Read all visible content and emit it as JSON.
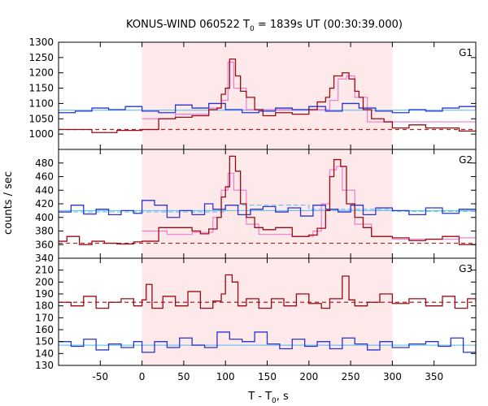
{
  "chart_data": {
    "type": "line",
    "title": "KONUS-WIND 060522 T",
    "title_sub": "0",
    "title_rest": " = 1839s UT (00:30:39.000)",
    "xlabel": "T - T",
    "xlabel_sub": "0",
    "xlabel_rest": ", s",
    "ylabel": "counts / sec",
    "xlim": [
      -100,
      400
    ],
    "x_ticks": [
      -50,
      0,
      50,
      100,
      150,
      200,
      250,
      300,
      350
    ],
    "highlight_x_range": [
      0,
      300
    ],
    "colors": {
      "highlight": "#fde8ea",
      "red": "#9b0a14",
      "blue": "#2a36c8",
      "pink": "#f07cd0",
      "lightblue": "#55b8f2",
      "dashred": "#b02020"
    },
    "panels": [
      {
        "label": "G1",
        "ylim": [
          950,
          1300
        ],
        "y_ticks": [
          950,
          1000,
          1050,
          1100,
          1150,
          1200,
          1250,
          1300
        ],
        "show_tick_labels": [
          1000,
          1050,
          1100,
          1150,
          1200,
          1250,
          1300
        ],
        "red_bg_level": 1015,
        "blue_bg_level": 1078,
        "red_series": [
          [
            -100,
            1015
          ],
          [
            -60,
            1005
          ],
          [
            -30,
            1012
          ],
          [
            0,
            1015
          ],
          [
            20,
            1050
          ],
          [
            40,
            1055
          ],
          [
            60,
            1060
          ],
          [
            80,
            1080
          ],
          [
            90,
            1085
          ],
          [
            95,
            1130
          ],
          [
            100,
            1150
          ],
          [
            105,
            1245
          ],
          [
            112,
            1190
          ],
          [
            118,
            1140
          ],
          [
            125,
            1120
          ],
          [
            135,
            1080
          ],
          [
            145,
            1060
          ],
          [
            160,
            1070
          ],
          [
            180,
            1065
          ],
          [
            200,
            1080
          ],
          [
            210,
            1105
          ],
          [
            220,
            1120
          ],
          [
            225,
            1150
          ],
          [
            230,
            1190
          ],
          [
            240,
            1200
          ],
          [
            248,
            1180
          ],
          [
            255,
            1140
          ],
          [
            260,
            1120
          ],
          [
            265,
            1080
          ],
          [
            275,
            1050
          ],
          [
            290,
            1040
          ],
          [
            300,
            1020
          ],
          [
            320,
            1030
          ],
          [
            340,
            1020
          ],
          [
            360,
            1020
          ],
          [
            380,
            1010
          ],
          [
            400,
            1008
          ]
        ],
        "blue_series": [
          [
            -100,
            1070
          ],
          [
            -80,
            1075
          ],
          [
            -60,
            1085
          ],
          [
            -40,
            1080
          ],
          [
            -20,
            1090
          ],
          [
            0,
            1075
          ],
          [
            20,
            1070
          ],
          [
            40,
            1095
          ],
          [
            60,
            1085
          ],
          [
            80,
            1100
          ],
          [
            100,
            1080
          ],
          [
            120,
            1070
          ],
          [
            140,
            1075
          ],
          [
            160,
            1085
          ],
          [
            180,
            1080
          ],
          [
            200,
            1090
          ],
          [
            220,
            1075
          ],
          [
            240,
            1100
          ],
          [
            260,
            1085
          ],
          [
            280,
            1075
          ],
          [
            300,
            1070
          ],
          [
            320,
            1080
          ],
          [
            340,
            1075
          ],
          [
            360,
            1085
          ],
          [
            380,
            1090
          ],
          [
            400,
            1080
          ]
        ],
        "model_series": [
          [
            0,
            1050
          ],
          [
            40,
            1065
          ],
          [
            80,
            1085
          ],
          [
            95,
            1110
          ],
          [
            103,
            1235
          ],
          [
            110,
            1150
          ],
          [
            125,
            1080
          ],
          [
            200,
            1080
          ],
          [
            225,
            1110
          ],
          [
            235,
            1180
          ],
          [
            245,
            1190
          ],
          [
            255,
            1120
          ],
          [
            270,
            1040
          ],
          [
            300,
            1040
          ]
        ]
      },
      {
        "label": "G2",
        "ylim": [
          340,
          500
        ],
        "y_ticks": [
          340,
          360,
          380,
          400,
          420,
          440,
          460,
          480,
          500
        ],
        "show_tick_labels": [
          340,
          360,
          380,
          400,
          420,
          440,
          460,
          480
        ],
        "red_bg_level": 362,
        "blue_bg_level": 410,
        "red_series": [
          [
            -100,
            365
          ],
          [
            -90,
            372
          ],
          [
            -75,
            360
          ],
          [
            -60,
            365
          ],
          [
            -45,
            362
          ],
          [
            -30,
            361
          ],
          [
            -10,
            364
          ],
          [
            0,
            365
          ],
          [
            20,
            385
          ],
          [
            40,
            385
          ],
          [
            60,
            380
          ],
          [
            70,
            376
          ],
          [
            80,
            383
          ],
          [
            90,
            400
          ],
          [
            95,
            430
          ],
          [
            100,
            445
          ],
          [
            105,
            490
          ],
          [
            112,
            468
          ],
          [
            118,
            420
          ],
          [
            125,
            400
          ],
          [
            135,
            385
          ],
          [
            145,
            382
          ],
          [
            160,
            385
          ],
          [
            180,
            372
          ],
          [
            200,
            374
          ],
          [
            210,
            384
          ],
          [
            220,
            410
          ],
          [
            225,
            460
          ],
          [
            230,
            485
          ],
          [
            238,
            475
          ],
          [
            245,
            420
          ],
          [
            255,
            400
          ],
          [
            265,
            385
          ],
          [
            275,
            372
          ],
          [
            300,
            370
          ],
          [
            320,
            366
          ],
          [
            340,
            368
          ],
          [
            360,
            372
          ],
          [
            380,
            360
          ],
          [
            400,
            362
          ]
        ],
        "blue_series": [
          [
            -100,
            408
          ],
          [
            -85,
            418
          ],
          [
            -70,
            405
          ],
          [
            -55,
            412
          ],
          [
            -40,
            404
          ],
          [
            -25,
            410
          ],
          [
            -10,
            406
          ],
          [
            0,
            425
          ],
          [
            15,
            418
          ],
          [
            30,
            400
          ],
          [
            45,
            410
          ],
          [
            60,
            404
          ],
          [
            75,
            420
          ],
          [
            85,
            412
          ],
          [
            100,
            418
          ],
          [
            115,
            404
          ],
          [
            130,
            412
          ],
          [
            145,
            416
          ],
          [
            160,
            408
          ],
          [
            175,
            414
          ],
          [
            190,
            402
          ],
          [
            205,
            418
          ],
          [
            220,
            412
          ],
          [
            235,
            408
          ],
          [
            250,
            418
          ],
          [
            265,
            404
          ],
          [
            280,
            414
          ],
          [
            300,
            410
          ],
          [
            320,
            404
          ],
          [
            340,
            414
          ],
          [
            360,
            406
          ],
          [
            380,
            412
          ],
          [
            400,
            408
          ]
        ],
        "model_series": [
          [
            0,
            380
          ],
          [
            30,
            375
          ],
          [
            60,
            378
          ],
          [
            85,
            400
          ],
          [
            95,
            440
          ],
          [
            103,
            465
          ],
          [
            110,
            440
          ],
          [
            125,
            390
          ],
          [
            140,
            375
          ],
          [
            180,
            372
          ],
          [
            205,
            380
          ],
          [
            215,
            420
          ],
          [
            225,
            470
          ],
          [
            233,
            475
          ],
          [
            240,
            440
          ],
          [
            255,
            390
          ],
          [
            275,
            372
          ],
          [
            300,
            368
          ],
          [
            380,
            370
          ]
        ],
        "lightblue_series": [
          [
            -100,
            408
          ],
          [
            0,
            408
          ],
          [
            100,
            418
          ],
          [
            200,
            412
          ],
          [
            300,
            409
          ],
          [
            400,
            408
          ]
        ]
      },
      {
        "label": "G3",
        "ylim": [
          130,
          220
        ],
        "y_ticks": [
          130,
          140,
          150,
          160,
          170,
          180,
          190,
          200,
          210,
          220
        ],
        "show_tick_labels": [
          130,
          140,
          150,
          160,
          170,
          180,
          190,
          200,
          210
        ],
        "red_bg_level": 183,
        "blue_bg_level": 147,
        "red_series": [
          [
            -100,
            183
          ],
          [
            -85,
            180
          ],
          [
            -70,
            188
          ],
          [
            -55,
            178
          ],
          [
            -40,
            183
          ],
          [
            -25,
            186
          ],
          [
            -10,
            180
          ],
          [
            0,
            185
          ],
          [
            5,
            198
          ],
          [
            12,
            178
          ],
          [
            25,
            188
          ],
          [
            40,
            180
          ],
          [
            55,
            192
          ],
          [
            70,
            178
          ],
          [
            85,
            184
          ],
          [
            95,
            190
          ],
          [
            100,
            206
          ],
          [
            108,
            200
          ],
          [
            115,
            180
          ],
          [
            125,
            186
          ],
          [
            140,
            178
          ],
          [
            155,
            186
          ],
          [
            170,
            180
          ],
          [
            185,
            190
          ],
          [
            200,
            182
          ],
          [
            215,
            178
          ],
          [
            225,
            186
          ],
          [
            240,
            205
          ],
          [
            248,
            185
          ],
          [
            255,
            180
          ],
          [
            270,
            183
          ],
          [
            285,
            190
          ],
          [
            300,
            182
          ],
          [
            320,
            186
          ],
          [
            340,
            180
          ],
          [
            360,
            188
          ],
          [
            375,
            178
          ],
          [
            390,
            186
          ],
          [
            400,
            183
          ]
        ],
        "blue_series": [
          [
            -100,
            150
          ],
          [
            -85,
            146
          ],
          [
            -70,
            152
          ],
          [
            -55,
            143
          ],
          [
            -40,
            148
          ],
          [
            -25,
            145
          ],
          [
            -10,
            150
          ],
          [
            0,
            141
          ],
          [
            15,
            150
          ],
          [
            30,
            145
          ],
          [
            45,
            153
          ],
          [
            60,
            147
          ],
          [
            75,
            145
          ],
          [
            90,
            158
          ],
          [
            105,
            152
          ],
          [
            120,
            150
          ],
          [
            135,
            158
          ],
          [
            150,
            148
          ],
          [
            165,
            144
          ],
          [
            180,
            152
          ],
          [
            195,
            146
          ],
          [
            210,
            150
          ],
          [
            225,
            144
          ],
          [
            240,
            153
          ],
          [
            255,
            148
          ],
          [
            270,
            143
          ],
          [
            285,
            150
          ],
          [
            300,
            145
          ],
          [
            320,
            148
          ],
          [
            340,
            150
          ],
          [
            355,
            146
          ],
          [
            370,
            153
          ],
          [
            385,
            141
          ],
          [
            400,
            148
          ]
        ]
      }
    ]
  }
}
